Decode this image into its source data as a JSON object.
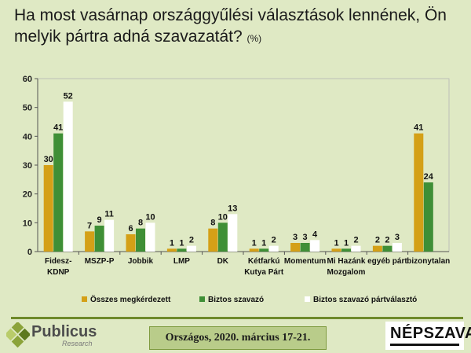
{
  "title": "Ha most vasárnap országgyűlési választások lennének, Ön melyik pártra adná szavazatát?",
  "title_unit": "(%)",
  "chart_data": {
    "type": "bar",
    "categories": [
      "Fidesz-\nKDNP",
      "MSZP-P",
      "Jobbik",
      "LMP",
      "DK",
      "Kétfarkú\nKutya Párt",
      "Momentum",
      "Mi Hazánk\nMozgalom",
      "egyéb párt",
      "bizonytalan"
    ],
    "series": [
      {
        "name": "Összes megkérdezett",
        "color": "#d4a017",
        "values": [
          30,
          7,
          6,
          1,
          8,
          1,
          3,
          1,
          2,
          41
        ]
      },
      {
        "name": "Biztos szavazó",
        "color": "#3f8f36",
        "values": [
          41,
          9,
          8,
          1,
          10,
          1,
          3,
          1,
          2,
          24
        ]
      },
      {
        "name": "Biztos szavazó pártválasztó",
        "color": "#ffffff",
        "values": [
          52,
          11,
          10,
          2,
          13,
          2,
          4,
          2,
          3,
          null
        ]
      }
    ],
    "ylim": [
      0,
      60
    ],
    "yticks": [
      0,
      10,
      20,
      30,
      40,
      50,
      60
    ],
    "legend_position": "bottom"
  },
  "footer": {
    "brand": "Publicus",
    "brand_sub": "Research",
    "date": "Országos, 2020. március 17-21.",
    "partner": "NÉPSZAVA"
  }
}
